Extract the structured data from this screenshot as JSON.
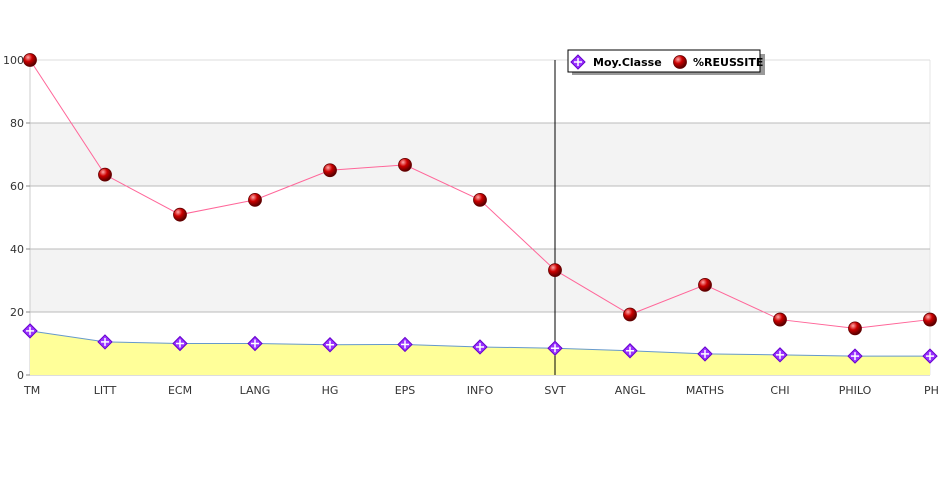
{
  "chart_data": {
    "type": "line",
    "categories": [
      "TM",
      "LITT",
      "ECM",
      "LANG",
      "HG",
      "EPS",
      "INFO",
      "SVT",
      "ANGL",
      "MATHS",
      "CHI",
      "PHILO",
      "PH"
    ],
    "series": [
      {
        "name": "Moy.Classe",
        "kind": "area",
        "marker": "diamond",
        "values": [
          14.0,
          10.5,
          10.0,
          10.0,
          9.6,
          9.7,
          8.9,
          8.5,
          7.7,
          6.7,
          6.4,
          6.0,
          6.0
        ],
        "colors": {
          "fill": "#ffff99",
          "line": "#6699cc",
          "marker": "#9933ff"
        }
      },
      {
        "name": "%REUSSITE",
        "kind": "line",
        "marker": "ball",
        "values": [
          100,
          63.6,
          50.9,
          55.6,
          65.0,
          66.7,
          55.6,
          33.3,
          19.2,
          28.6,
          17.6,
          14.8,
          17.6
        ],
        "colors": {
          "line": "#ff6699",
          "marker": "#cc0000"
        }
      }
    ],
    "ylim": [
      0,
      100
    ],
    "yticks": [
      "0",
      "20",
      "40",
      "60",
      "80",
      "100"
    ],
    "grid": "horizontal, alternating bands",
    "highlight_category": "SVT",
    "legend_position": "top-right",
    "title": "",
    "xlabel": "",
    "ylabel": "",
    "colors": {
      "band": "#f3f3f3",
      "gridline": "#bbbbbb",
      "axis": "#cccccc",
      "cursor": "#000000"
    }
  }
}
